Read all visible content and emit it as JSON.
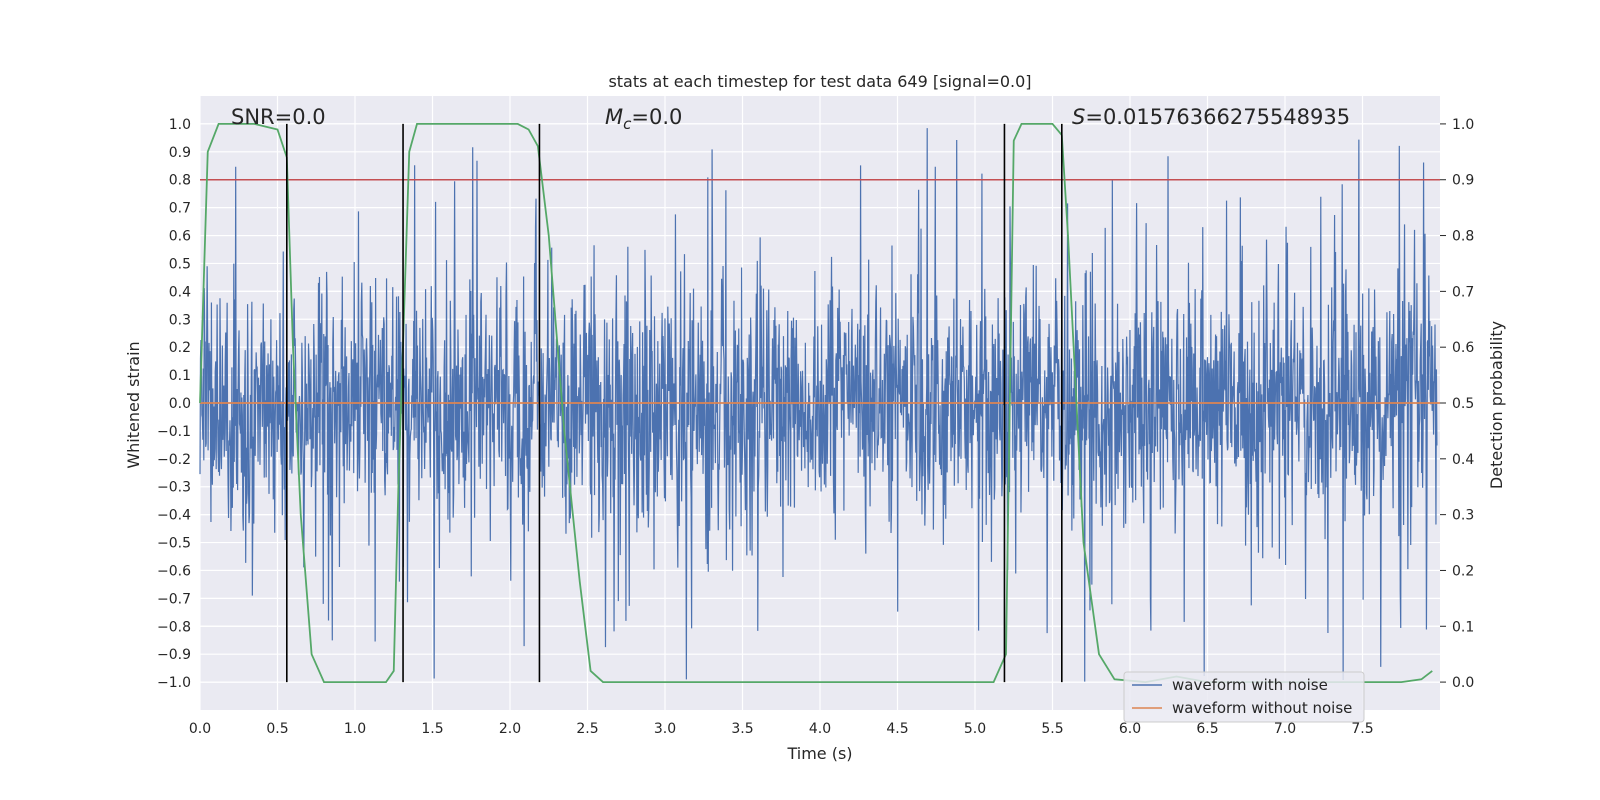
{
  "chart_data": {
    "type": "line",
    "title": "stats at each timestep for test data 649 [signal=0.0]",
    "xlabel": "Time (s)",
    "ylabel": "Whitened strain",
    "y2label": "Detection probability",
    "xlim": [
      0.0,
      8.0
    ],
    "ylim": [
      -1.1,
      1.1
    ],
    "y2lim": [
      -0.05,
      1.05
    ],
    "x_ticks": [
      0.0,
      0.5,
      1.0,
      1.5,
      2.0,
      2.5,
      3.0,
      3.5,
      4.0,
      4.5,
      5.0,
      5.5,
      6.0,
      6.5,
      7.0,
      7.5
    ],
    "x_tick_labels": [
      "0.0",
      "0.5",
      "1.0",
      "1.5",
      "2.0",
      "2.5",
      "3.0",
      "3.5",
      "4.0",
      "4.5",
      "5.0",
      "5.5",
      "6.0",
      "6.5",
      "7.0",
      "7.5"
    ],
    "y_ticks": [
      1.0,
      0.9,
      0.8,
      0.7,
      0.6,
      0.5,
      0.4,
      0.3,
      0.2,
      0.1,
      0.0,
      -0.1,
      -0.2,
      -0.3,
      -0.4,
      -0.5,
      -0.6,
      -0.7,
      -0.8,
      -0.9,
      -1.0
    ],
    "y_tick_labels": [
      "1.0",
      "0.9",
      "0.8",
      "0.7",
      "0.6",
      "0.5",
      "0.4",
      "0.3",
      "0.2",
      "0.1",
      "0.0",
      "−0.1",
      "−0.2",
      "−0.3",
      "−0.4",
      "−0.5",
      "−0.6",
      "−0.7",
      "−0.8",
      "−0.9",
      "−1.0"
    ],
    "y2_ticks": [
      1.0,
      0.9,
      0.8,
      0.7,
      0.6,
      0.5,
      0.4,
      0.3,
      0.2,
      0.1,
      0.0
    ],
    "y2_tick_labels": [
      "1.0",
      "0.9",
      "0.8",
      "0.7",
      "0.6",
      "0.5",
      "0.4",
      "0.3",
      "0.2",
      "0.1",
      "0.0"
    ],
    "grid": true,
    "legend_position": "lower-right",
    "annotations": {
      "snr_prefix": "SNR=",
      "snr_value": "0.0",
      "mc_symbol": "M",
      "mc_subscript": "c",
      "mc_value": "=0.0",
      "s_symbol": "S",
      "s_value": "=0.01576366275548935"
    },
    "series": [
      {
        "name": "waveform with noise",
        "color": "#4c72b0",
        "axis": "left",
        "kind": "noise",
        "amplitude_typical": 0.35,
        "amplitude_peak": 1.0
      },
      {
        "name": "waveform without noise",
        "color": "#dd8452",
        "axis": "left",
        "kind": "constant",
        "value": 0.0
      },
      {
        "name": "",
        "color": "#55a868",
        "axis": "right",
        "kind": "probability",
        "x": [
          0.0,
          0.05,
          0.12,
          0.2,
          0.35,
          0.5,
          0.56,
          0.6,
          0.65,
          0.72,
          0.8,
          1.0,
          1.2,
          1.25,
          1.28,
          1.35,
          1.4,
          1.6,
          1.85,
          2.05,
          2.12,
          2.18,
          2.25,
          2.35,
          2.45,
          2.52,
          2.6,
          3.5,
          4.5,
          5.12,
          5.2,
          5.25,
          5.3,
          5.5,
          5.56,
          5.6,
          5.7,
          5.8,
          5.9,
          6.1,
          6.3,
          6.5,
          7.0,
          7.5,
          7.75,
          7.88,
          7.95
        ],
        "y": [
          0.5,
          0.95,
          1.0,
          1.0,
          1.0,
          0.99,
          0.94,
          0.6,
          0.3,
          0.05,
          0.0,
          0.0,
          0.0,
          0.02,
          0.35,
          0.95,
          1.0,
          1.0,
          1.0,
          1.0,
          0.99,
          0.96,
          0.8,
          0.45,
          0.18,
          0.02,
          0.0,
          0.0,
          0.0,
          0.0,
          0.05,
          0.97,
          1.0,
          1.0,
          0.98,
          0.8,
          0.25,
          0.05,
          0.005,
          0.0,
          0.01,
          0.0,
          0.0,
          0.0,
          0.0,
          0.005,
          0.02
        ]
      },
      {
        "name": "",
        "color": "#c44e52",
        "axis": "right",
        "kind": "threshold",
        "value": 0.9
      }
    ],
    "vlines": [
      0.56,
      1.31,
      2.19,
      5.19,
      5.56
    ],
    "vline_color": "#000000"
  }
}
